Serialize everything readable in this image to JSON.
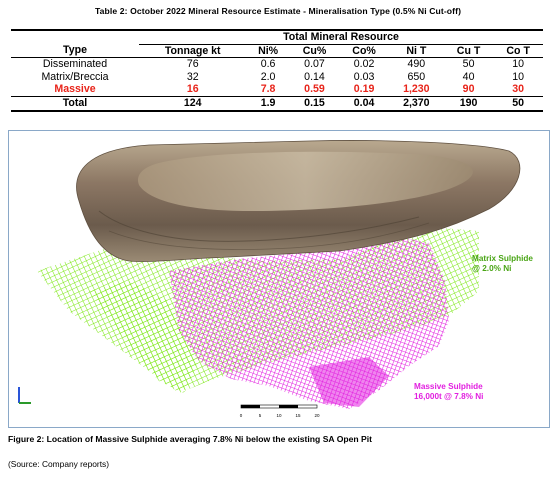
{
  "table": {
    "title": "Table 2: October 2022 Mineral Resource Estimate - Mineralisation Type (0.5% Ni Cut-off)",
    "group_header": "Total Mineral Resource",
    "columns": [
      "Type",
      "Tonnage kt",
      "Ni%",
      "Cu%",
      "Co%",
      "Ni T",
      "Cu T",
      "Co T"
    ],
    "rows": [
      {
        "type": "Disseminated",
        "tonnage": "76",
        "ni_pct": "0.6",
        "cu_pct": "0.07",
        "co_pct": "0.02",
        "ni_t": "490",
        "cu_t": "50",
        "co_t": "10"
      },
      {
        "type": "Matrix/Breccia",
        "tonnage": "32",
        "ni_pct": "2.0",
        "cu_pct": "0.14",
        "co_pct": "0.03",
        "ni_t": "650",
        "cu_t": "40",
        "co_t": "10"
      },
      {
        "type": "Massive",
        "tonnage": "16",
        "ni_pct": "7.8",
        "cu_pct": "0.59",
        "co_pct": "0.19",
        "ni_t": "1,230",
        "cu_t": "90",
        "co_t": "30"
      },
      {
        "type": "Total",
        "tonnage": "124",
        "ni_pct": "1.9",
        "cu_pct": "0.15",
        "co_pct": "0.04",
        "ni_t": "2,370",
        "cu_t": "190",
        "co_t": "50"
      }
    ],
    "highlight_color": "#e8241a"
  },
  "figure": {
    "matrix_label_line1": "Matrix Sulphide",
    "matrix_label_line2": "@ 2.0% Ni",
    "massive_label_line1": "Massive Sulphide",
    "massive_label_line2": "16,000t @ 7.8% Ni",
    "scale_ticks": [
      "0",
      "5",
      "10",
      "15",
      "20"
    ],
    "matrix_color": "#7fe81a",
    "massive_color": "#e21fe0",
    "caption": "Figure 2: Location of Massive Sulphide averaging 7.8% Ni below the existing SA Open Pit",
    "source": "(Source: Company reports)"
  }
}
